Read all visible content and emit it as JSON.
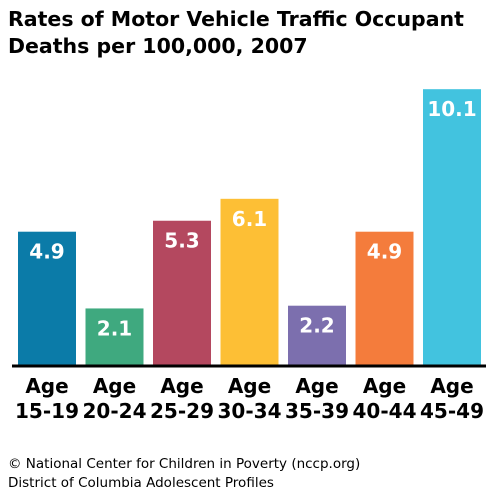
{
  "header": {
    "title_line1": "Rates of Motor Vehicle Traffic Occupant",
    "title_line2": "Deaths per 100,000, 2007"
  },
  "footer": {
    "line1": "© National Center for Children in Poverty (nccp.org)",
    "line2": "District of Columbia Adolescent Profiles"
  },
  "chart_data": {
    "type": "bar",
    "title": "Rates of Motor Vehicle Traffic Occupant Deaths per 100,000, 2007",
    "xlabel": "",
    "ylabel": "",
    "ylim": [
      0,
      10.8
    ],
    "grid": false,
    "legend": "none",
    "categories": [
      {
        "line1": "Age",
        "line2": "15-19"
      },
      {
        "line1": "Age",
        "line2": "20-24"
      },
      {
        "line1": "Age",
        "line2": "25-29"
      },
      {
        "line1": "Age",
        "line2": "30-34"
      },
      {
        "line1": "Age",
        "line2": "35-39"
      },
      {
        "line1": "Age",
        "line2": "40-44"
      },
      {
        "line1": "Age",
        "line2": "45-49"
      }
    ],
    "values": [
      4.9,
      2.1,
      5.3,
      6.1,
      2.2,
      4.9,
      10.1
    ],
    "value_labels": [
      "4.9",
      "2.1",
      "5.3",
      "6.1",
      "2.2",
      "4.9",
      "10.1"
    ],
    "colors": [
      "#0b7ba8",
      "#3fa97f",
      "#b4485f",
      "#fdbf35",
      "#7c6fae",
      "#f47c3c",
      "#42c3df"
    ]
  }
}
